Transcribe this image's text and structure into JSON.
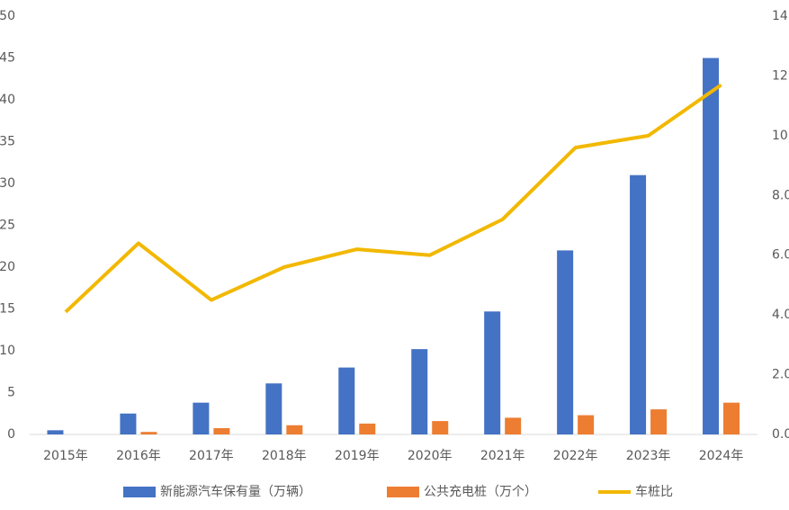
{
  "chart_data": {
    "type": "bar_line",
    "categories": [
      "2015年",
      "2016年",
      "2017年",
      "2018年",
      "2019年",
      "2020年",
      "2021年",
      "2022年",
      "2023年",
      "2024年"
    ],
    "series": [
      {
        "name": "新能源汽车保有量（万辆）",
        "color": "#4472c4",
        "type": "bar",
        "values": [
          0.5,
          2.5,
          3.8,
          6.1,
          8.0,
          10.2,
          14.7,
          22.0,
          31.0,
          45.0
        ]
      },
      {
        "name": "公共充电桩（万个）",
        "color": "#ed7d31",
        "type": "bar",
        "values": [
          0,
          0.3,
          0.75,
          1.1,
          1.3,
          1.6,
          2.0,
          2.3,
          3.0,
          3.8
        ]
      },
      {
        "name": "车桩比",
        "color": "#f2b800",
        "type": "line",
        "axis": "y2",
        "values": [
          4.1,
          6.4,
          4.5,
          5.6,
          6.2,
          6.0,
          7.2,
          9.6,
          10.0,
          11.7
        ]
      }
    ],
    "ylim": [
      0,
      50
    ],
    "yticks": [
      0,
      5,
      10,
      15,
      20,
      25,
      30,
      35,
      40,
      45,
      50
    ],
    "y2lim": [
      0,
      14
    ],
    "y2ticks": [
      {
        "value": 0,
        "label": "0.0"
      },
      {
        "value": 2,
        "label": "2.0"
      },
      {
        "value": 4,
        "label": "4.0"
      },
      {
        "value": 6,
        "label": "6.0"
      },
      {
        "value": 8,
        "label": "8.0"
      },
      {
        "value": 10,
        "label": "10"
      },
      {
        "value": 12,
        "label": "12"
      },
      {
        "value": 14,
        "label": "14"
      }
    ],
    "legend": "bottom"
  }
}
